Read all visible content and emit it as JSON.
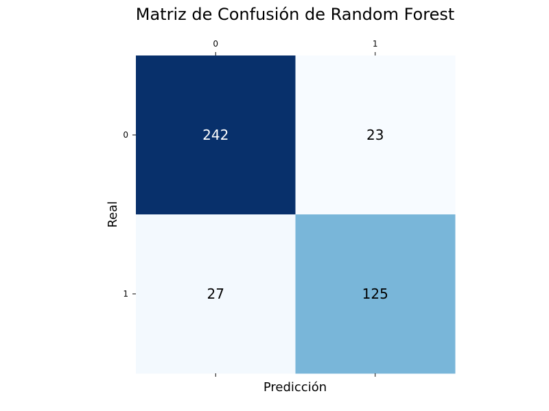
{
  "chart_data": {
    "type": "heatmap",
    "title": "Matriz de Confusión de Random Forest",
    "xlabel": "Predicción",
    "ylabel": "Real",
    "x_categories": [
      "0",
      "1"
    ],
    "y_categories": [
      "0",
      "1"
    ],
    "values": [
      [
        242,
        23
      ],
      [
        27,
        125
      ]
    ],
    "colormap": "Blues",
    "colorbar": false,
    "x_tick_position": "top",
    "grid": false
  }
}
